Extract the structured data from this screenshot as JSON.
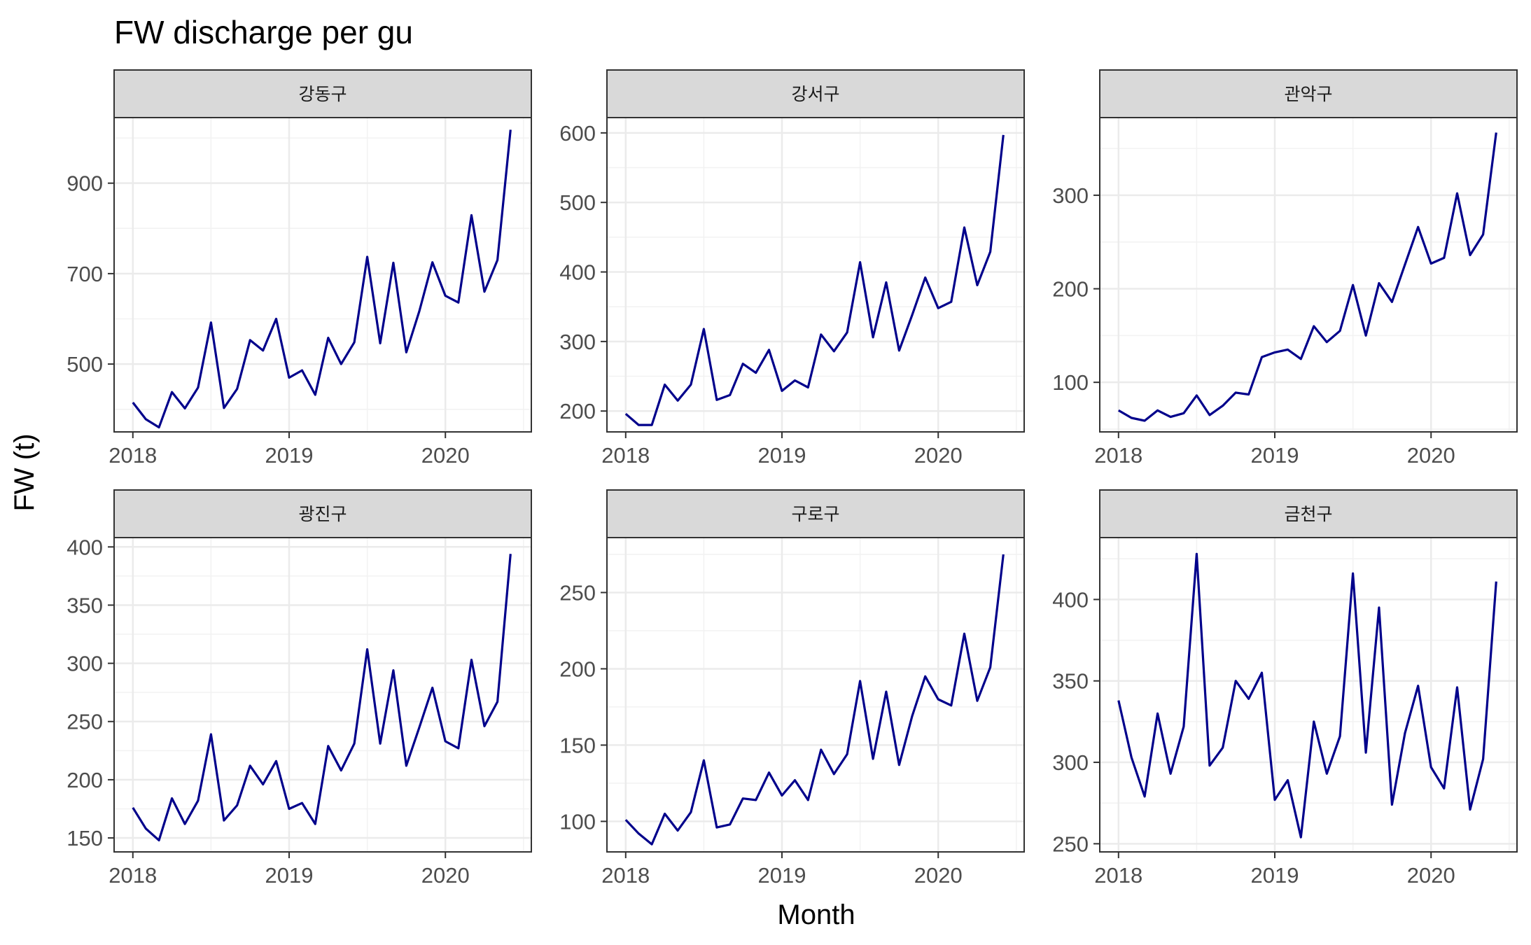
{
  "chart_data": {
    "type": "line",
    "title": "FW discharge per gu",
    "xlabel": "Month",
    "ylabel": "FW (t)",
    "line_color": "#00008B",
    "strip_color": "#D9D9D9",
    "x_tick_labels": [
      "2018",
      "2019",
      "2020"
    ],
    "x_range": [
      2017.88,
      2020.55
    ],
    "x": [
      2018.0,
      2018.083,
      2018.167,
      2018.25,
      2018.333,
      2018.417,
      2018.5,
      2018.583,
      2018.667,
      2018.75,
      2018.833,
      2018.917,
      2019.0,
      2019.083,
      2019.167,
      2019.25,
      2019.333,
      2019.417,
      2019.5,
      2019.583,
      2019.667,
      2019.75,
      2019.833,
      2019.917,
      2020.0,
      2020.083,
      2020.167,
      2020.25,
      2020.333,
      2020.417
    ],
    "panels": [
      {
        "name": "강동구",
        "y_ticks": [
          500,
          700,
          900
        ],
        "ylim": [
          350,
          1045
        ],
        "values": [
          415,
          378,
          360,
          438,
          402,
          448,
          592,
          403,
          445,
          553,
          530,
          600,
          470,
          486,
          432,
          558,
          500,
          548,
          737,
          546,
          724,
          526,
          617,
          725,
          651,
          636,
          829,
          660,
          730,
          1018
        ]
      },
      {
        "name": "강서구",
        "y_ticks": [
          200,
          300,
          400,
          500,
          600
        ],
        "ylim": [
          170,
          622
        ],
        "values": [
          196,
          180,
          180,
          238,
          215,
          238,
          318,
          216,
          223,
          268,
          255,
          288,
          229,
          244,
          234,
          310,
          286,
          313,
          414,
          306,
          385,
          287,
          338,
          392,
          348,
          357,
          464,
          381,
          429,
          597
        ]
      },
      {
        "name": "관악구",
        "y_ticks": [
          100,
          200,
          300
        ],
        "ylim": [
          47,
          383
        ],
        "values": [
          70,
          62,
          59,
          70,
          63,
          67,
          86,
          65,
          75,
          89,
          87,
          127,
          132,
          135,
          125,
          160,
          143,
          155,
          204,
          150,
          206,
          186,
          226,
          266,
          227,
          233,
          302,
          236,
          258,
          367
        ]
      },
      {
        "name": "광진구",
        "y_ticks": [
          150,
          200,
          250,
          300,
          350,
          400
        ],
        "ylim": [
          138,
          408
        ],
        "values": [
          176,
          158,
          148,
          184,
          162,
          182,
          239,
          165,
          178,
          212,
          196,
          216,
          175,
          180,
          162,
          229,
          208,
          231,
          312,
          231,
          294,
          212,
          245,
          279,
          233,
          227,
          303,
          246,
          267,
          394
        ]
      },
      {
        "name": "구로구",
        "y_ticks": [
          100,
          150,
          200,
          250
        ],
        "ylim": [
          80,
          286
        ],
        "values": [
          101,
          92,
          85,
          105,
          94,
          106,
          140,
          96,
          98,
          115,
          114,
          132,
          117,
          127,
          114,
          147,
          131,
          144,
          192,
          141,
          185,
          137,
          169,
          195,
          180,
          176,
          223,
          179,
          201,
          275
        ]
      },
      {
        "name": "금천구",
        "y_ticks": [
          250,
          300,
          350,
          400
        ],
        "ylim": [
          245,
          438
        ],
        "values": [
          338,
          303,
          279,
          330,
          293,
          322,
          428,
          298,
          309,
          350,
          339,
          355,
          277,
          289,
          254,
          325,
          293,
          316,
          416,
          306,
          395,
          274,
          318,
          347,
          297,
          284,
          346,
          271,
          302,
          411
        ]
      }
    ]
  }
}
